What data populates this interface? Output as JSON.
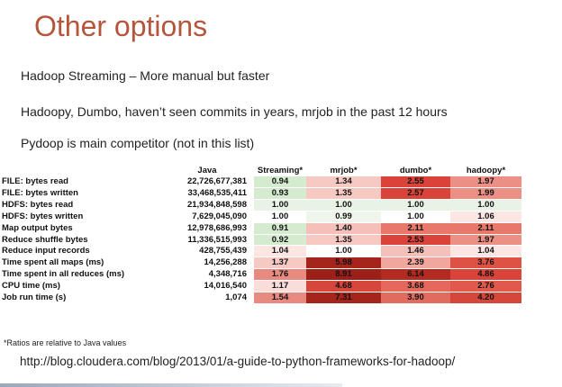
{
  "slide": {
    "title": "Other options",
    "bullets": [
      "Hadoop Streaming – More manual but faster",
      "Hadoopy, Dumbo, haven’t seen commits in years, mrjob in the past 12 hours",
      "Pydoop is main competitor (not in this list)"
    ],
    "footnote": "*Ratios are relative to Java values",
    "url": "http://blog.cloudera.com/blog/2013/01/a-guide-to-python-frameworks-for-hadoop/"
  },
  "table": {
    "headers": [
      "",
      "Java",
      "Streaming*",
      "mrjob*",
      "dumbo*",
      "hadoopy*"
    ],
    "rows": [
      {
        "label": "FILE: bytes read",
        "java": "22,726,677,381",
        "values": [
          {
            "text": "0.94",
            "bg": "#d4ebd0"
          },
          {
            "text": "1.34",
            "bg": "#f6c9c3"
          },
          {
            "text": "2.55",
            "bg": "#d9433a"
          },
          {
            "text": "1.97",
            "bg": "#ec8f85"
          }
        ]
      },
      {
        "label": "FILE: bytes written",
        "java": "33,468,535,411",
        "values": [
          {
            "text": "0.93",
            "bg": "#d4ebd0"
          },
          {
            "text": "1.35",
            "bg": "#f6c9c3"
          },
          {
            "text": "2.57",
            "bg": "#d9433a"
          },
          {
            "text": "1.99",
            "bg": "#ec8f85"
          }
        ]
      },
      {
        "label": "HDFS: bytes read",
        "java": "21,934,848,598",
        "values": [
          {
            "text": "1.00",
            "bg": "#e9f3e5"
          },
          {
            "text": "1.00",
            "bg": "#e9f3e5"
          },
          {
            "text": "1.00",
            "bg": "#e9f3e5"
          },
          {
            "text": "1.00",
            "bg": "#e9f3e5"
          }
        ]
      },
      {
        "label": "HDFS: bytes written",
        "java": "7,629,045,090",
        "values": [
          {
            "text": "1.00",
            "bg": "#ffffff"
          },
          {
            "text": "0.99",
            "bg": "#eef6ec"
          },
          {
            "text": "1.00",
            "bg": "#ffffff"
          },
          {
            "text": "1.06",
            "bg": "#fbe6e3"
          }
        ]
      },
      {
        "label": "Map output bytes",
        "java": "12,978,686,993",
        "values": [
          {
            "text": "0.91",
            "bg": "#d4ebd0"
          },
          {
            "text": "1.40",
            "bg": "#f4c0b9"
          },
          {
            "text": "2.11",
            "bg": "#e8776c"
          },
          {
            "text": "2.11",
            "bg": "#e8776c"
          }
        ]
      },
      {
        "label": "Reduce shuffle bytes",
        "java": "11,336,515,993",
        "values": [
          {
            "text": "0.92",
            "bg": "#d4ebd0"
          },
          {
            "text": "1.35",
            "bg": "#f6c9c3"
          },
          {
            "text": "2.53",
            "bg": "#d9433a"
          },
          {
            "text": "1.97",
            "bg": "#ec8f85"
          }
        ]
      },
      {
        "label": "Reduce input records",
        "java": "428,755,439",
        "values": [
          {
            "text": "1.04",
            "bg": "#fbe6e3"
          },
          {
            "text": "1.00",
            "bg": "#ffffff"
          },
          {
            "text": "1.46",
            "bg": "#f4c0b9"
          },
          {
            "text": "1.04",
            "bg": "#fbe6e3"
          }
        ]
      },
      {
        "label": "Time spent all maps (ms)",
        "java": "14,256,288",
        "values": [
          {
            "text": "1.37",
            "bg": "#f6c9c3"
          },
          {
            "text": "5.98",
            "bg": "#a5241c"
          },
          {
            "text": "2.39",
            "bg": "#f1a79e"
          },
          {
            "text": "3.76",
            "bg": "#de5246"
          }
        ]
      },
      {
        "label": "Time spent in all reduces (ms)",
        "java": "4,348,716",
        "values": [
          {
            "text": "1.76",
            "bg": "#e88a7f"
          },
          {
            "text": "8.91",
            "bg": "#9c1f18"
          },
          {
            "text": "6.14",
            "bg": "#b32a20"
          },
          {
            "text": "4.86",
            "bg": "#d9433a"
          }
        ]
      },
      {
        "label": "CPU time (ms)",
        "java": "14,016,540",
        "values": [
          {
            "text": "1.17",
            "bg": "#f9ddd9"
          },
          {
            "text": "4.68",
            "bg": "#d5463b"
          },
          {
            "text": "3.68",
            "bg": "#e5685c"
          },
          {
            "text": "2.76",
            "bg": "#e0594d"
          }
        ]
      },
      {
        "label": "Job run time (s)",
        "java": "1,074",
        "values": [
          {
            "text": "1.54",
            "bg": "#e88a7f"
          },
          {
            "text": "7.31",
            "bg": "#a5241c"
          },
          {
            "text": "3.90",
            "bg": "#e26b5f"
          },
          {
            "text": "4.20",
            "bg": "#d5463b"
          }
        ]
      }
    ]
  }
}
